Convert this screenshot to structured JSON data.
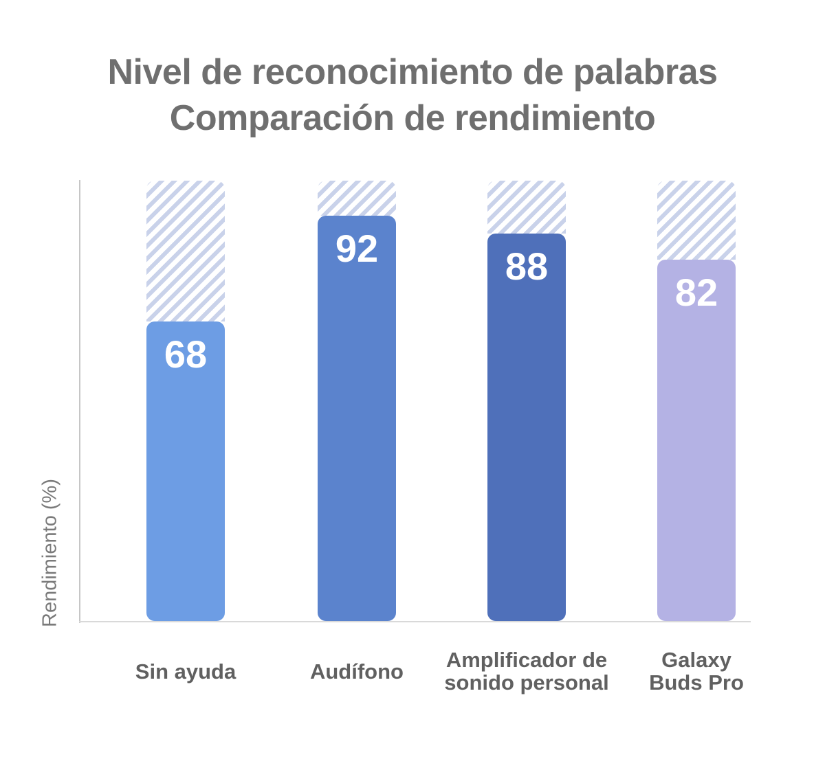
{
  "title": {
    "line1": "Nivel de reconocimiento de palabras",
    "line2": "Comparación de rendimiento"
  },
  "chart_data": {
    "type": "bar",
    "title": "Nivel de reconocimiento de palabras — Comparación de rendimiento",
    "categories": [
      "Sin ayuda",
      "Audífono",
      "Amplificador de sonido personal",
      "Galaxy Buds Pro"
    ],
    "category_lines": [
      [
        "Sin ayuda"
      ],
      [
        "Audífono"
      ],
      [
        "Amplificador de",
        "sonido personal"
      ],
      [
        "Galaxy",
        "Buds Pro"
      ]
    ],
    "values": [
      68,
      92,
      88,
      82
    ],
    "xlabel": "",
    "ylabel": "Rendimiento (%)",
    "ylim": [
      0,
      100
    ],
    "grid": false,
    "legend": false,
    "value_labels_shown": true,
    "value_label_color": "#ffffff",
    "remainder_hatched_to": 100,
    "bar_colors": [
      "#6d9de4",
      "#5b83cd",
      "#4f70ba",
      "#b4b2e4"
    ],
    "hatch_color": "#c9d2ea"
  },
  "colors": {
    "background": "#ffffff",
    "title_text": "#6f6f6f",
    "y_axis_label_text": "#7a7a7a",
    "category_label_text": "#606060",
    "y_axis_line": "#c6c6c6",
    "x_axis_line": "#d9d9d9"
  }
}
